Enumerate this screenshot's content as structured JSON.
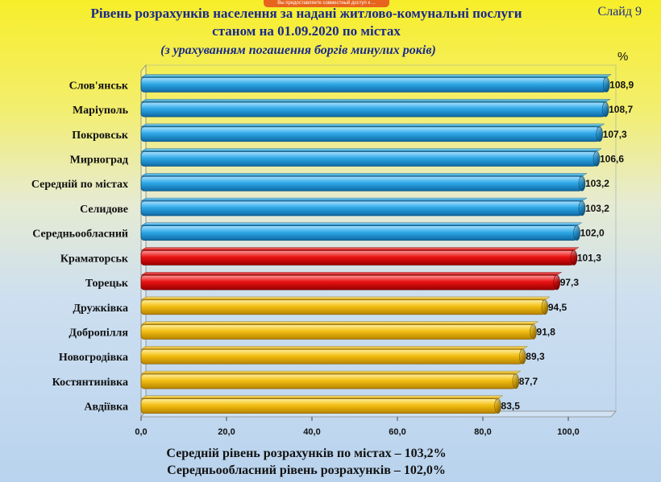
{
  "slide": {
    "title_line1": "Рівень розрахунків населення за надані житлово-комунальні послуги",
    "title_line2": "станом на 01.09.2020 по містах",
    "subtitle": "(з урахуванням погашення боргів минулих років)",
    "slide_label": "Слайд 9",
    "unit": "%",
    "share_notice": "Вы предоставляете совместный доступ к ...",
    "footer_line1": "Середній рівень розрахунків по містах – 103,2%",
    "footer_line2": "Середньообласний рівень розрахунків – 102,0%"
  },
  "colors": {
    "blue": "#2ea8e6",
    "red": "#e81212",
    "gold": "#f2be12"
  },
  "chart_data": {
    "type": "bar",
    "orientation": "horizontal",
    "categories": [
      "Слов'янськ",
      "Маріуполь",
      "Покровськ",
      "Мирноград",
      "Середній по містах",
      "Селидове",
      "Середньообласний",
      "Краматорськ",
      "Торецьк",
      "Дружківка",
      "Добропілля",
      "Новогродівка",
      "Костянтинівка",
      "Авдіївка"
    ],
    "values": [
      108.9,
      108.7,
      107.3,
      106.6,
      103.2,
      103.2,
      102.0,
      101.3,
      97.3,
      94.5,
      91.8,
      89.3,
      87.7,
      83.5
    ],
    "value_labels": [
      "108,9",
      "108,7",
      "107,3",
      "106,6",
      "103,2",
      "103,2",
      "102,0",
      "101,3",
      "97,3",
      "94,5",
      "91,8",
      "89,3",
      "87,7",
      "83,5"
    ],
    "bar_colors": [
      "blue",
      "blue",
      "blue",
      "blue",
      "blue",
      "blue",
      "blue",
      "red",
      "red",
      "gold",
      "gold",
      "gold",
      "gold",
      "gold"
    ],
    "xlim": [
      0,
      110
    ],
    "xticks": [
      0,
      20,
      40,
      60,
      80,
      100
    ],
    "xtick_labels": [
      "0,0",
      "20,0",
      "40,0",
      "60,0",
      "80,0",
      "100,0"
    ],
    "grid": false,
    "legend": "none"
  }
}
